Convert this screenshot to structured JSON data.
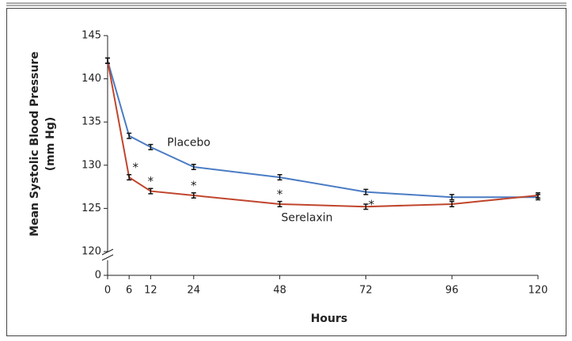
{
  "chart_data": {
    "type": "line",
    "ylabel": [
      "Mean Systolic Blood Pressure",
      "(mm Hg)"
    ],
    "xlabel": "Hours",
    "x": [
      0,
      6,
      12,
      24,
      48,
      72,
      96,
      120
    ],
    "xlim": [
      0,
      120
    ],
    "xticks": [
      0,
      6,
      12,
      24,
      48,
      72,
      96,
      120
    ],
    "ylim": [
      0,
      145
    ],
    "y_break": [
      0,
      120
    ],
    "yticks": [
      0,
      120,
      125,
      130,
      135,
      140,
      145
    ],
    "series": [
      {
        "name": "Placebo",
        "color": "#4a7cc4",
        "values": [
          142.1,
          133.4,
          132.1,
          129.8,
          128.6,
          126.9,
          126.3,
          126.3
        ],
        "errors": [
          0.3,
          0.3,
          0.3,
          0.3,
          0.3,
          0.3,
          0.3,
          0.3
        ]
      },
      {
        "name": "Serelaxin",
        "color": "#c0452c",
        "values": [
          142.1,
          128.6,
          127.0,
          126.5,
          125.5,
          125.2,
          125.5,
          126.5
        ],
        "errors": [
          0.3,
          0.3,
          0.3,
          0.3,
          0.3,
          0.3,
          0.3,
          0.3
        ]
      }
    ],
    "annotations": [
      {
        "text": "*",
        "x": 6
      },
      {
        "text": "*",
        "x": 12
      },
      {
        "text": "*",
        "x": 24
      },
      {
        "text": "*",
        "x": 48
      },
      {
        "text": "*",
        "x": 72
      }
    ]
  }
}
